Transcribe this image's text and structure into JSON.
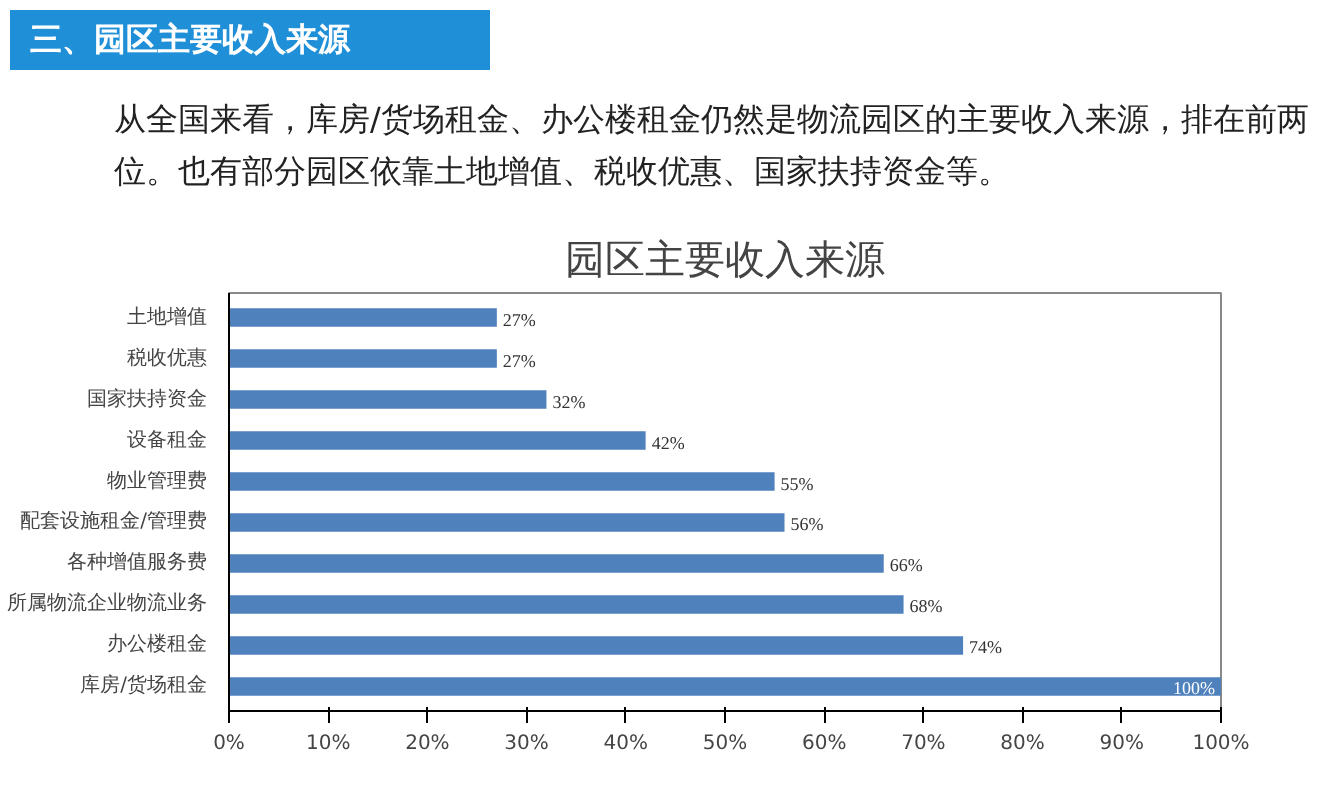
{
  "chart_data": {
    "type": "bar",
    "orientation": "horizontal",
    "title": "三、园区主要收入来源",
    "subtitle": "从全国来看，库房/货场租金、办公楼租金仍然是物流园区的主要收入来源，排在前两位。也有部分园区依靠土地增值、税收优惠、国家扶持资金等。",
    "annotations": [
      "园区主要收入来源"
    ],
    "categories": [
      "土地增值",
      "税收优惠",
      "国家扶持资金",
      "设备租金",
      "物业管理费",
      "配套设施租金/管理费",
      "各种增值服务费",
      "所属物流企业物流业务",
      "办公楼租金",
      "库房/货场租金"
    ],
    "values": [
      27,
      27,
      32,
      42,
      55,
      56,
      66,
      68,
      74,
      100
    ],
    "value_labels": [
      "27%",
      "27%",
      "32%",
      "42%",
      "55%",
      "56%",
      "66%",
      "68%",
      "74%",
      "100%"
    ],
    "color": "#4f81bd",
    "xlim": [
      0,
      100
    ],
    "xticks": [
      {
        "value": 0,
        "label": "0%"
      },
      {
        "value": 10,
        "label": "10%"
      },
      {
        "value": 20,
        "label": "20%"
      },
      {
        "value": 30,
        "label": "30%"
      },
      {
        "value": 40,
        "label": "40%"
      },
      {
        "value": 50,
        "label": "50%"
      },
      {
        "value": 60,
        "label": "60%"
      },
      {
        "value": 70,
        "label": "70%"
      },
      {
        "value": 80,
        "label": "80%"
      },
      {
        "value": 90,
        "label": "90%"
      },
      {
        "value": 100,
        "label": "100%"
      }
    ],
    "grid": false
  }
}
